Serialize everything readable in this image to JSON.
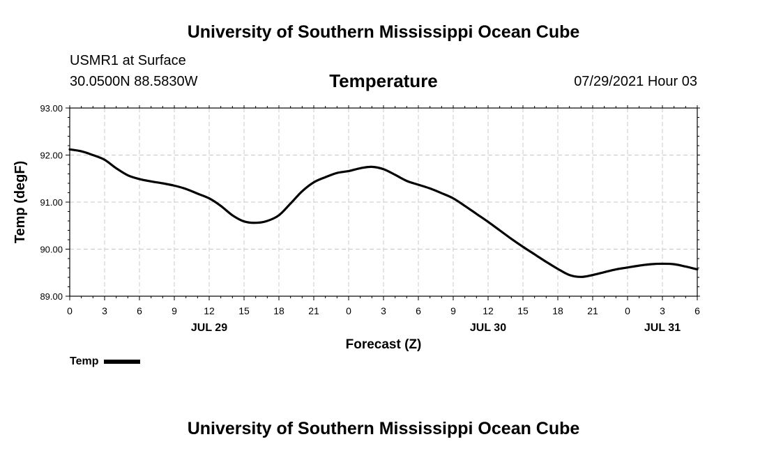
{
  "header": {
    "title": "University of Southern Mississippi Ocean Cube",
    "station": "USMR1 at Surface",
    "coords": "30.0500N  88.5830W",
    "subtitle": "Temperature",
    "datetime": "07/29/2021 Hour 03"
  },
  "footer": {
    "title": "University of Southern Mississippi Ocean Cube"
  },
  "legend": {
    "label": "Temp"
  },
  "chart_data": {
    "type": "line",
    "title": "Temperature",
    "xlabel": "Forecast (Z)",
    "ylabel": "Temp (degF)",
    "xlim": [
      0,
      54
    ],
    "ylim": [
      89.0,
      93.0
    ],
    "grid": true,
    "x_tick_values": [
      0,
      3,
      6,
      9,
      12,
      15,
      18,
      21,
      24,
      27,
      30,
      33,
      36,
      39,
      42,
      45,
      48,
      51,
      54
    ],
    "x_tick_labels": [
      "0",
      "3",
      "6",
      "9",
      "12",
      "15",
      "18",
      "21",
      "0",
      "3",
      "6",
      "9",
      "12",
      "15",
      "18",
      "21",
      "0",
      "3",
      "6"
    ],
    "y_tick_values": [
      89.0,
      90.0,
      91.0,
      92.0,
      93.0
    ],
    "y_tick_labels": [
      "89.00",
      "90.00",
      "91.00",
      "92.00",
      "93.00"
    ],
    "date_labels": [
      {
        "x": 12,
        "label": "JUL 29"
      },
      {
        "x": 36,
        "label": "JUL 30"
      },
      {
        "x": 51,
        "label": "JUL 31"
      }
    ],
    "series": [
      {
        "name": "Temp",
        "color": "#000000",
        "x": [
          0,
          1,
          2,
          3,
          4,
          5,
          6,
          7,
          8,
          9,
          10,
          11,
          12,
          13,
          14,
          15,
          16,
          17,
          18,
          19,
          20,
          21,
          22,
          23,
          24,
          25,
          26,
          27,
          28,
          29,
          30,
          31,
          32,
          33,
          34,
          35,
          36,
          37,
          38,
          39,
          40,
          41,
          42,
          43,
          44,
          45,
          46,
          47,
          48,
          49,
          50,
          51,
          52,
          53,
          54
        ],
        "values": [
          92.12,
          92.08,
          92.0,
          91.9,
          91.72,
          91.57,
          91.49,
          91.44,
          91.4,
          91.35,
          91.28,
          91.18,
          91.08,
          90.92,
          90.72,
          90.59,
          90.56,
          90.6,
          90.72,
          90.97,
          91.23,
          91.42,
          91.53,
          91.62,
          91.66,
          91.72,
          91.75,
          91.7,
          91.58,
          91.45,
          91.37,
          91.29,
          91.19,
          91.08,
          90.92,
          90.75,
          90.58,
          90.4,
          90.22,
          90.05,
          89.89,
          89.73,
          89.58,
          89.45,
          89.41,
          89.45,
          89.51,
          89.57,
          89.61,
          89.65,
          89.68,
          89.69,
          89.68,
          89.63,
          89.57
        ]
      }
    ]
  }
}
